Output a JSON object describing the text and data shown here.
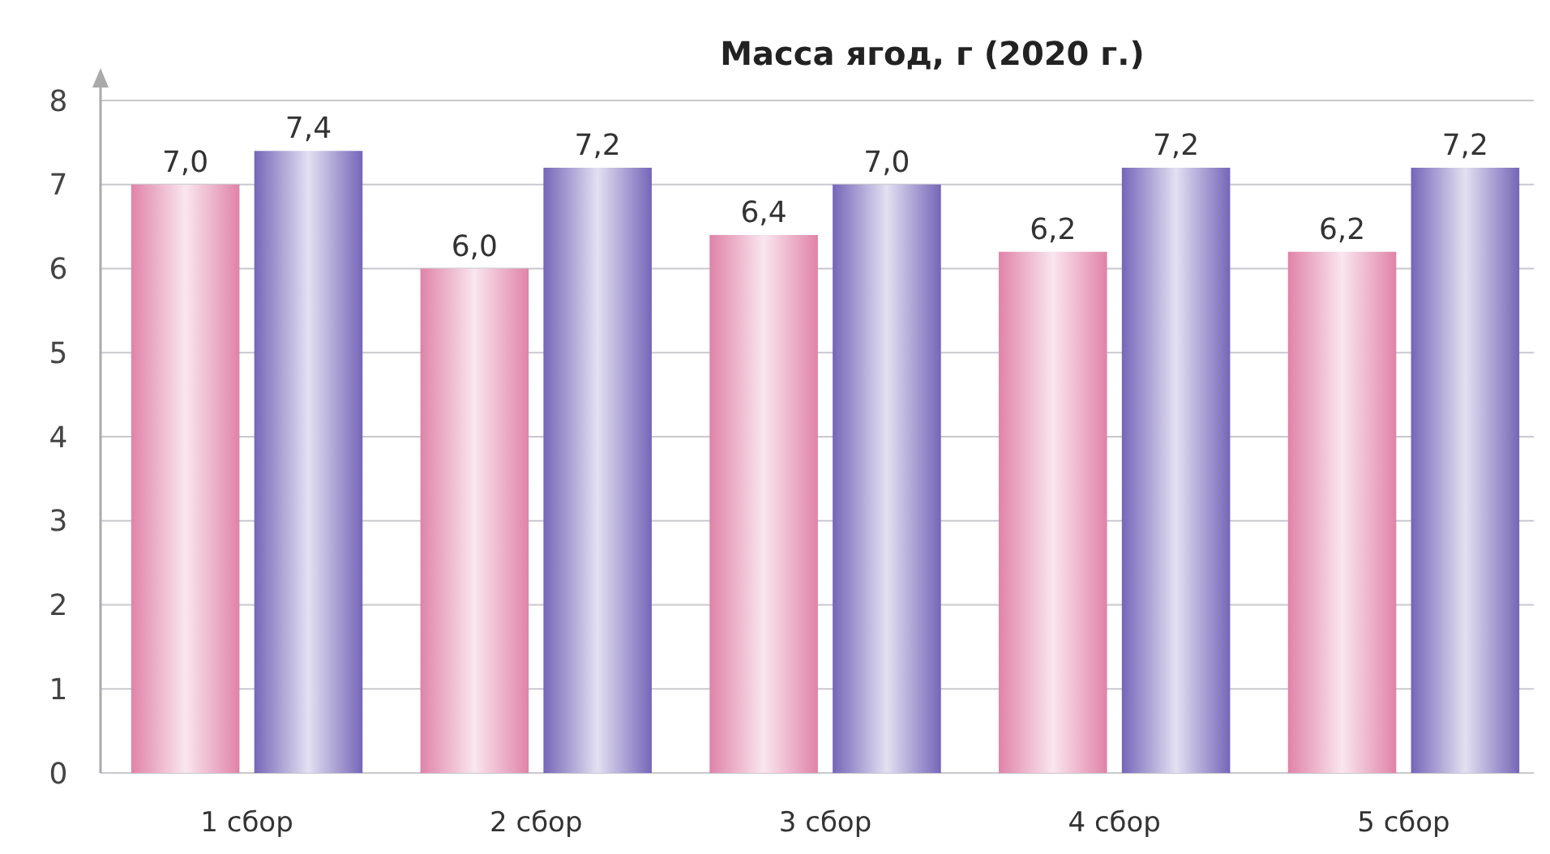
{
  "chart_data": {
    "type": "bar",
    "title": "Масса ягод, г (2020 г.)",
    "categories": [
      "1 сбор",
      "2 сбор",
      "3 сбор",
      "4 сбор",
      "5 сбор"
    ],
    "series": [
      {
        "color": "#e083a8",
        "values": [
          7.0,
          6.0,
          6.4,
          6.2,
          6.2
        ],
        "value_labels": [
          "7,0",
          "6,0",
          "6,4",
          "6,2",
          "6,2"
        ]
      },
      {
        "color": "#7566b8",
        "values": [
          7.4,
          7.2,
          7.0,
          7.2,
          7.2
        ],
        "value_labels": [
          "7,4",
          "7,2",
          "7,0",
          "7,2",
          "7,2"
        ]
      }
    ],
    "ylim": [
      0,
      8
    ],
    "yticks": [
      0,
      1,
      2,
      3,
      4,
      5,
      6,
      7,
      8
    ],
    "grid": "y"
  }
}
